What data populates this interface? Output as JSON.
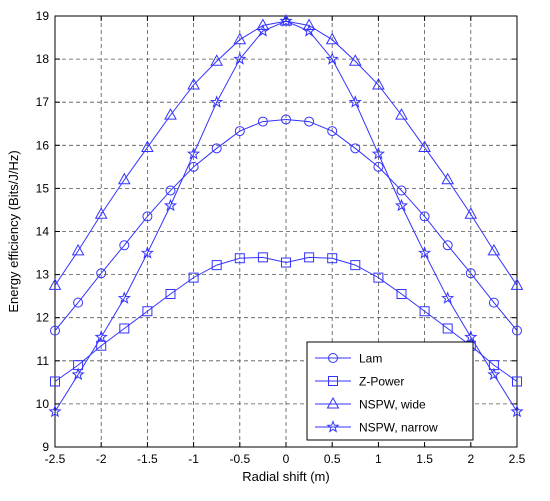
{
  "chart_data": {
    "type": "line",
    "title": "",
    "xlabel": "Radial shift (m)",
    "ylabel": "Energy efficiency (Bits/J/Hz)",
    "xlim": [
      -2.5,
      2.5
    ],
    "ylim": [
      9,
      19
    ],
    "x_ticks": [
      "-2.5",
      "-2",
      "-1.5",
      "-1",
      "-0.5",
      "0",
      "0.5",
      "1",
      "1.5",
      "2",
      "2.5"
    ],
    "y_ticks": [
      "9",
      "10",
      "11",
      "12",
      "13",
      "14",
      "15",
      "16",
      "17",
      "18",
      "19"
    ],
    "grid": true,
    "legend_position": "bottom-right",
    "line_color": "#3333ff",
    "x": [
      -2.5,
      -2.25,
      -2.0,
      -1.75,
      -1.5,
      -1.25,
      -1.0,
      -0.75,
      -0.5,
      -0.25,
      0.0,
      0.25,
      0.5,
      0.75,
      1.0,
      1.25,
      1.5,
      1.75,
      2.0,
      2.25,
      2.5
    ],
    "series": [
      {
        "name": "Lam",
        "marker": "circle",
        "values": [
          11.7,
          12.35,
          13.03,
          13.68,
          14.35,
          14.95,
          15.5,
          15.93,
          16.33,
          16.55,
          16.6,
          16.55,
          16.33,
          15.93,
          15.5,
          14.95,
          14.35,
          13.68,
          13.03,
          12.35,
          11.7
        ]
      },
      {
        "name": "Z-Power",
        "marker": "square",
        "values": [
          10.52,
          10.9,
          11.35,
          11.75,
          12.15,
          12.55,
          12.93,
          13.22,
          13.38,
          13.4,
          13.28,
          13.4,
          13.38,
          13.22,
          12.93,
          12.55,
          12.15,
          11.75,
          11.35,
          10.9,
          10.52
        ]
      },
      {
        "name": "NSPW, wide",
        "marker": "triangle",
        "values": [
          12.75,
          13.55,
          14.4,
          15.2,
          15.95,
          16.7,
          17.4,
          17.95,
          18.45,
          18.78,
          18.88,
          18.78,
          18.45,
          17.95,
          17.4,
          16.7,
          15.95,
          15.2,
          14.4,
          13.55,
          12.75
        ]
      },
      {
        "name": "NSPW, narrow",
        "marker": "star",
        "values": [
          9.82,
          10.68,
          11.55,
          12.45,
          13.5,
          14.6,
          15.8,
          17.0,
          18.0,
          18.65,
          18.88,
          18.65,
          18.0,
          17.0,
          15.8,
          14.6,
          13.5,
          12.45,
          11.55,
          10.68,
          9.82
        ]
      }
    ]
  }
}
